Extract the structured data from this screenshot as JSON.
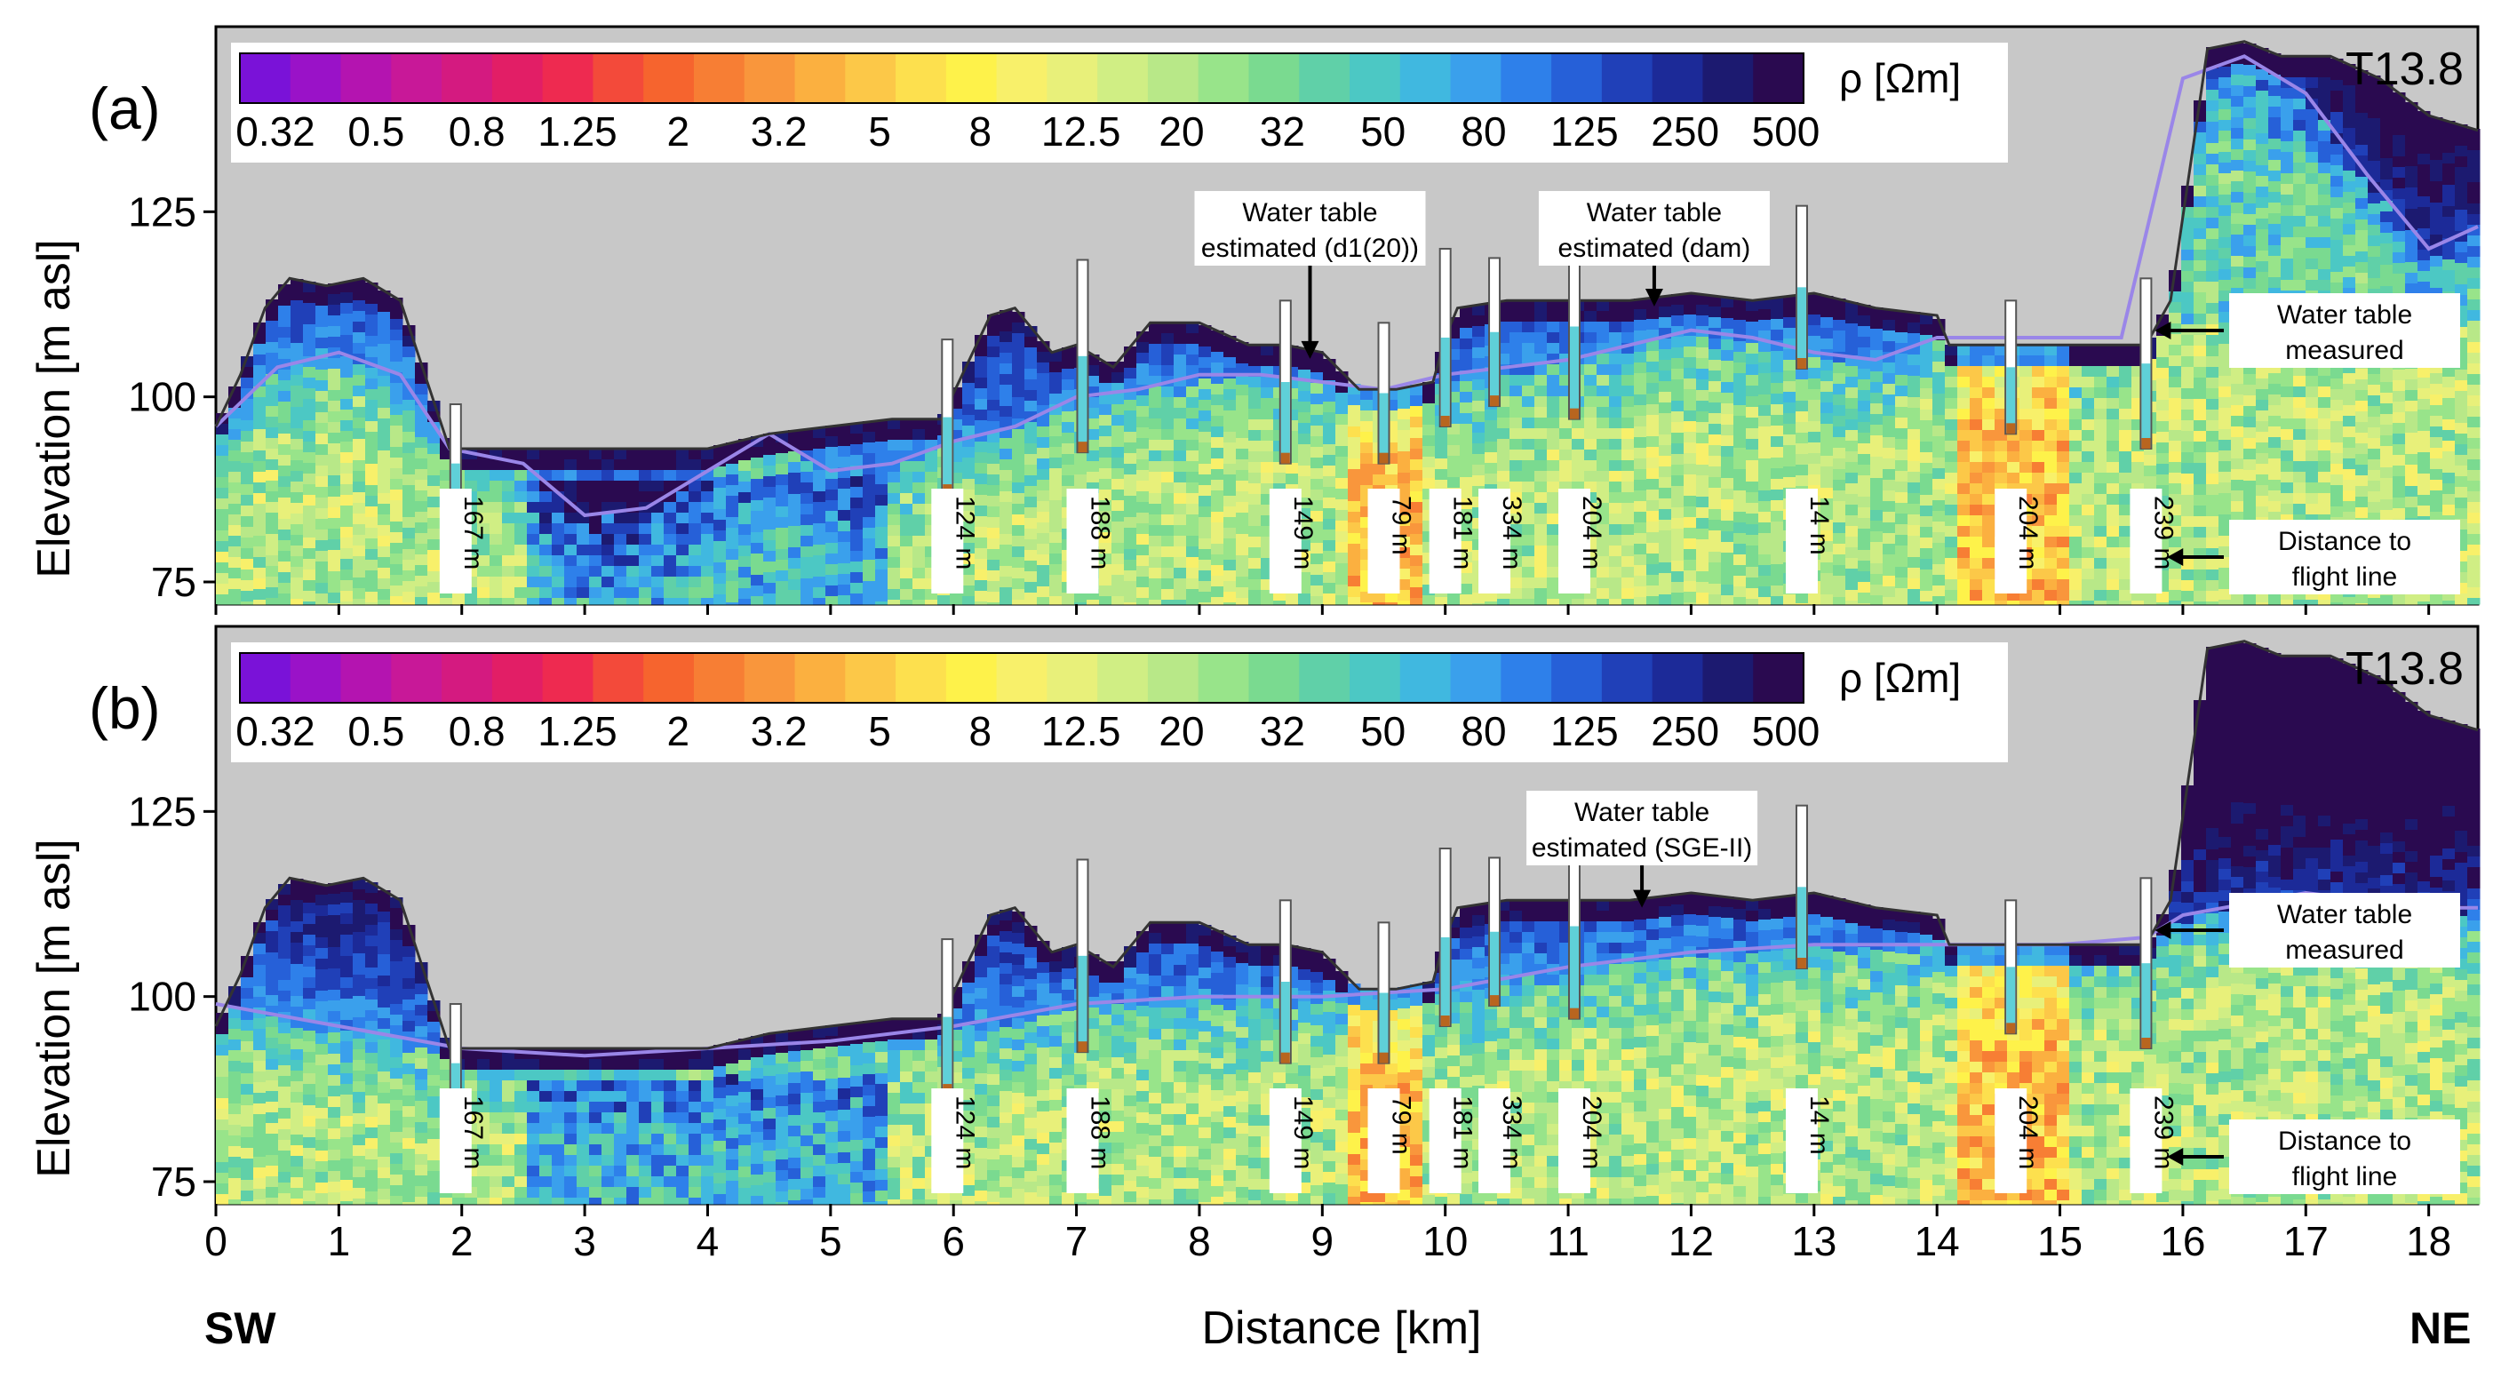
{
  "chart_data": {
    "type": "heatmap",
    "description_xlabel": "Distance [km]",
    "xlabel": "Distance [km]",
    "ylabel": "Elevation [m asl]",
    "x_ticks": [
      0,
      1,
      2,
      3,
      4,
      5,
      6,
      7,
      8,
      9,
      10,
      11,
      12,
      13,
      14,
      15,
      16,
      17,
      18
    ],
    "x_range": [
      0,
      18.4
    ],
    "y_ticks": [
      75,
      100,
      125
    ],
    "y_range": [
      72,
      150
    ],
    "left_end_label": "SW",
    "right_end_label": "NE",
    "colorbar": {
      "title": "ρ [Ωm]",
      "tick_labels": [
        "0.32",
        "0.5",
        "0.8",
        "1.25",
        "2",
        "3.2",
        "5",
        "8",
        "12.5",
        "20",
        "32",
        "50",
        "80",
        "125",
        "250",
        "500"
      ],
      "colors": [
        "#7a12d8",
        "#9a12c8",
        "#b414b0",
        "#c81898",
        "#d41a80",
        "#e21e66",
        "#ee2a50",
        "#f34a3a",
        "#f6642e",
        "#f77e34",
        "#f9963c",
        "#fbb040",
        "#fcc848",
        "#fde04e",
        "#fef24a",
        "#f8f06a",
        "#e8f07a",
        "#d0ee84",
        "#b8e888",
        "#98e48a",
        "#7ada90",
        "#60d0a8",
        "#4cc8c4",
        "#40b8e0",
        "#3aa0ec",
        "#2e80ea",
        "#2660d8",
        "#2040b8",
        "#1c2a98",
        "#1c1a70",
        "#2a0a50"
      ]
    },
    "panels": [
      {
        "panel_label": "(a)",
        "transect": "T13.8",
        "water_table_annotation_lines": [
          "Water table",
          "estimated (d",
          "1(20)",
          ")"
        ],
        "annotations": [
          {
            "lines": [
              "Water table",
              "estimated (d1(20))"
            ],
            "points_to_km": 8.9
          },
          {
            "lines": [
              "Water table",
              "estimated (dam)"
            ],
            "points_to_km": 11.7
          },
          {
            "lines": [
              "Water table",
              "measured"
            ],
            "points_to_km": 15.7
          },
          {
            "lines": [
              "Distance to",
              "flight line"
            ],
            "points_to_km": 15.8
          }
        ],
        "estimated_water_table": {
          "x": [
            0,
            0.5,
            1,
            1.5,
            1.9,
            2.5,
            3,
            3.5,
            4,
            4.5,
            5,
            5.5,
            6,
            6.5,
            7,
            7.5,
            8,
            8.5,
            9,
            9.5,
            10,
            10.5,
            11,
            11.5,
            12,
            12.5,
            13,
            13.5,
            14,
            14.5,
            15,
            15.5,
            16,
            16.5,
            17,
            17.5,
            18,
            18.4
          ],
          "y": [
            96,
            104,
            106,
            103,
            93,
            91,
            84,
            85,
            90,
            95,
            90,
            91,
            94,
            96,
            100,
            101,
            103,
            103,
            102,
            101,
            103,
            104,
            105,
            107,
            109,
            108,
            106,
            105,
            108,
            108,
            108,
            108,
            143,
            146,
            141,
            130,
            120,
            123
          ]
        }
      },
      {
        "panel_label": "(b)",
        "transect": "T13.8",
        "annotations": [
          {
            "lines": [
              "Water table",
              "estimated (SGE-II)"
            ],
            "points_to_km": 11.6
          },
          {
            "lines": [
              "Water table",
              "measured"
            ],
            "points_to_km": 15.7
          },
          {
            "lines": [
              "Distance to",
              "flight line"
            ],
            "points_to_km": 15.8
          }
        ],
        "estimated_water_table": {
          "x": [
            0,
            1,
            2,
            3,
            4,
            5,
            6,
            7,
            8,
            9,
            10,
            11,
            12,
            13,
            14,
            15,
            15.7,
            16,
            17,
            18,
            18.4
          ],
          "y": [
            99,
            96,
            93,
            92,
            93,
            94,
            96,
            99,
            100,
            100,
            101,
            104,
            106,
            107,
            107,
            107,
            108,
            111,
            114,
            112,
            112
          ]
        }
      }
    ],
    "boreholes": [
      {
        "km": 1.95,
        "distance_label": "167 m"
      },
      {
        "km": 5.95,
        "distance_label": "124 m"
      },
      {
        "km": 7.05,
        "distance_label": "188 m"
      },
      {
        "km": 8.7,
        "distance_label": "149 m"
      },
      {
        "km": 9.5,
        "distance_label": "79 m"
      },
      {
        "km": 10.0,
        "distance_label": "181 m"
      },
      {
        "km": 10.4,
        "distance_label": "334 m"
      },
      {
        "km": 11.05,
        "distance_label": "204 m"
      },
      {
        "km": 12.9,
        "distance_label": "14 m"
      },
      {
        "km": 14.6,
        "distance_label": "204 m"
      },
      {
        "km": 15.7,
        "distance_label": "239 m"
      }
    ],
    "surface_elevation": {
      "x": [
        0,
        0.2,
        0.4,
        0.6,
        0.9,
        1.2,
        1.5,
        1.7,
        1.9,
        2.1,
        2.5,
        3,
        3.5,
        4,
        4.5,
        5,
        5.5,
        5.9,
        6.1,
        6.3,
        6.5,
        6.8,
        7.0,
        7.3,
        7.6,
        8.0,
        8.4,
        8.7,
        9.0,
        9.3,
        9.6,
        9.9,
        10.0,
        10.1,
        10.5,
        11,
        11.5,
        12,
        12.5,
        13,
        13.5,
        14,
        14.1,
        14.5,
        15,
        15.5,
        15.7,
        15.9,
        16.2,
        16.5,
        16.8,
        17.2,
        17.6,
        18,
        18.4
      ],
      "y": [
        96,
        103,
        112,
        116,
        115,
        116,
        113,
        103,
        93,
        93,
        93,
        93,
        93,
        93,
        95,
        96,
        97,
        97,
        104,
        111,
        112,
        106,
        107,
        104,
        110,
        110,
        107,
        107,
        106,
        101,
        101,
        102,
        108,
        112,
        113,
        113,
        113,
        114,
        113,
        114,
        112,
        111,
        107,
        107,
        107,
        107,
        107,
        113,
        147,
        148,
        146,
        146,
        143,
        138,
        136
      ]
    },
    "legend_notes": {
      "measured": "Water table measured",
      "distance": "Distance to flight line"
    }
  }
}
